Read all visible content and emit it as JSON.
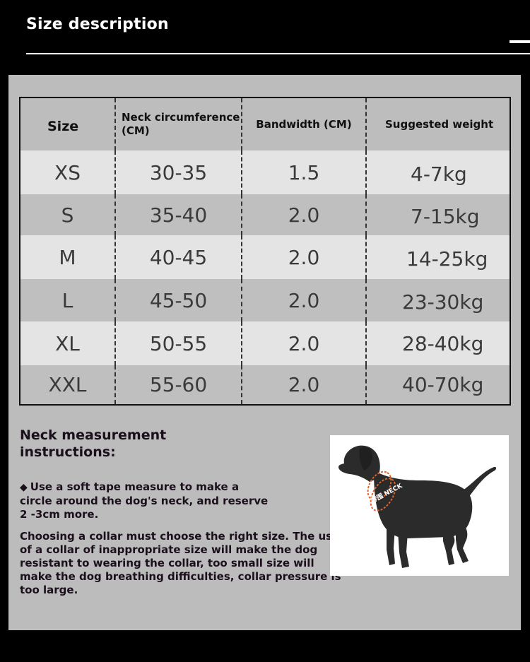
{
  "header": {
    "title": "Size description"
  },
  "table": {
    "columns": [
      "Size",
      "Neck circumference (CM)",
      "Bandwidth (CM)",
      "Suggested weight"
    ],
    "rows": [
      {
        "size": "XS",
        "neck": "30-35",
        "band": "1.5",
        "weight": "4-7kg"
      },
      {
        "size": "S",
        "neck": "35-40",
        "band": "2.0",
        "weight": "7-15kg"
      },
      {
        "size": "M",
        "neck": "40-45",
        "band": "2.0",
        "weight": "14-25kg"
      },
      {
        "size": "L",
        "neck": "45-50",
        "band": "2.0",
        "weight": "23-30kg"
      },
      {
        "size": "XL",
        "neck": "50-55",
        "band": "2.0",
        "weight": "28-40kg"
      },
      {
        "size": "XXL",
        "neck": "55-60",
        "band": "2.0",
        "weight": "40-70kg"
      }
    ]
  },
  "instructions": {
    "title": "Neck measurement instructions:",
    "bullet_icon": "diamond-icon",
    "bullet": "Use a soft tape measure to make a circle around the dog's neck, and reserve 2 -3cm more.",
    "paragraph": "Choosing a collar must choose the right size. The use of a collar of inappropriate size will make the dog resistant to wearing the collar, too small size will make the dog breathing difficulties, collar pressure is too large."
  },
  "illustration": {
    "collar_label": "脖围 NECK",
    "collar_color": "#e0662a"
  },
  "colors": {
    "background": "#000000",
    "panel": "#bcbcbc",
    "row_light": "#e4e4e4",
    "row_dark": "#bfbfbf"
  }
}
